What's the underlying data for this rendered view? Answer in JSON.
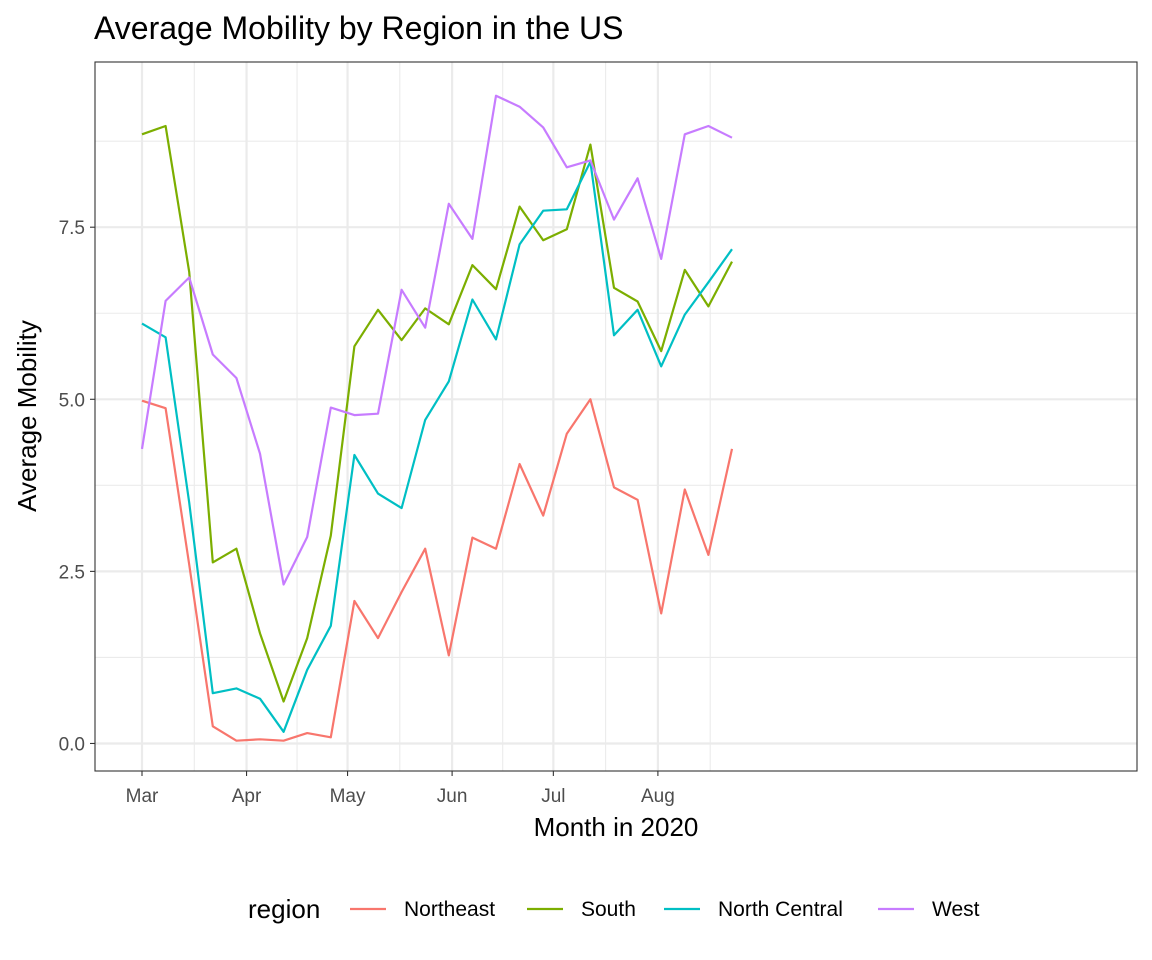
{
  "chart_data": {
    "type": "line",
    "title": "Average Mobility by Region in the US",
    "xlabel": "Month in 2020",
    "ylabel": "Average Mobility",
    "x_ticks": [
      "Mar",
      "Apr",
      "May",
      "Jun",
      "Jul",
      "Aug"
    ],
    "y_ticks": [
      "0.0",
      "2.5",
      "5.0",
      "7.5"
    ],
    "ylim": [
      -0.4,
      9.9
    ],
    "grid": true,
    "legend": {
      "title": "region",
      "placement": "bottom"
    },
    "x": [
      "Mar 1",
      "Mar 8",
      "Mar 15",
      "Mar 22",
      "Mar 29",
      "Apr 5",
      "Apr 12",
      "Apr 19",
      "Apr 26",
      "May 3",
      "May 10",
      "May 17",
      "May 24",
      "May 31",
      "Jun 7",
      "Jun 14",
      "Jun 21",
      "Jun 28",
      "Jul 5",
      "Jul 12",
      "Jul 19",
      "Jul 26",
      "Aug 2",
      "Aug 9",
      "Aug 16",
      "Aug 23"
    ],
    "series": [
      {
        "name": "Northeast",
        "color": "#F8766D",
        "values": [
          4.98,
          4.87,
          2.6,
          0.25,
          0.04,
          0.06,
          0.04,
          0.15,
          0.09,
          2.07,
          1.53,
          2.2,
          2.83,
          1.28,
          2.99,
          2.83,
          4.06,
          3.31,
          4.5,
          5.0,
          3.72,
          3.54,
          1.89,
          3.69,
          2.74,
          4.28
        ]
      },
      {
        "name": "South",
        "color": "#7CAE00",
        "values": [
          8.85,
          8.97,
          6.85,
          2.63,
          2.83,
          1.6,
          0.61,
          1.53,
          3.02,
          5.77,
          6.3,
          5.86,
          6.32,
          6.09,
          6.95,
          6.6,
          7.8,
          7.31,
          7.47,
          8.7,
          6.62,
          6.42,
          5.7,
          6.88,
          6.35,
          7.0
        ]
      },
      {
        "name": "North Central",
        "color": "#00BFC4",
        "values": [
          6.1,
          5.9,
          3.5,
          0.73,
          0.8,
          0.65,
          0.17,
          1.07,
          1.71,
          4.19,
          3.63,
          3.42,
          4.7,
          5.26,
          6.45,
          5.87,
          7.25,
          7.74,
          7.76,
          8.45,
          5.93,
          6.3,
          5.48,
          6.23,
          6.7,
          7.18
        ]
      },
      {
        "name": "West",
        "color": "#C77CFF",
        "values": [
          4.28,
          6.43,
          6.77,
          5.65,
          5.31,
          4.21,
          2.31,
          3.0,
          4.88,
          4.77,
          4.79,
          6.59,
          6.04,
          7.84,
          7.33,
          9.41,
          9.25,
          8.95,
          8.37,
          8.47,
          7.61,
          8.21,
          7.04,
          8.85,
          8.97,
          8.8
        ]
      }
    ]
  }
}
